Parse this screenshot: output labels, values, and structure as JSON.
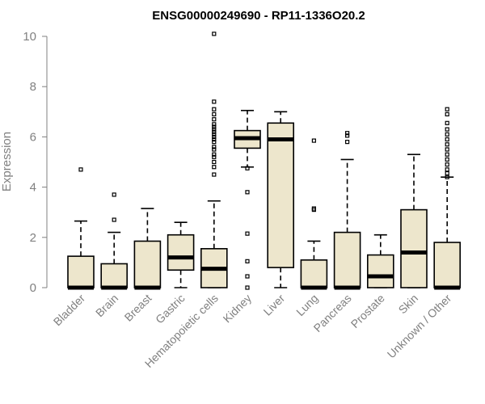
{
  "chart_data": {
    "type": "boxplot",
    "title": "ENSG00000249690 - RP11-1336O20.2",
    "xlabel": "",
    "ylabel": "Expression",
    "ylim": [
      0,
      10
    ],
    "yticks": [
      0,
      2,
      4,
      6,
      8,
      10
    ],
    "categories": [
      "Bladder",
      "Brain",
      "Breast",
      "Gastric",
      "Hematopoietic cells",
      "Kidney",
      "Liver",
      "Lung",
      "Pancreas",
      "Prostate",
      "Skin",
      "Unknown / Other"
    ],
    "boxes": [
      {
        "min": 0,
        "q1": 0,
        "median": 0,
        "q3": 1.25,
        "max": 2.65,
        "outliers": [
          4.7
        ]
      },
      {
        "min": 0,
        "q1": 0,
        "median": 0,
        "q3": 0.95,
        "max": 2.2,
        "outliers": [
          2.7,
          3.7
        ]
      },
      {
        "min": 0,
        "q1": 0,
        "median": 0,
        "q3": 1.85,
        "max": 3.15,
        "outliers": []
      },
      {
        "min": 0,
        "q1": 0.7,
        "median": 1.2,
        "q3": 2.1,
        "max": 2.6,
        "outliers": []
      },
      {
        "min": 0,
        "q1": 0,
        "median": 0.75,
        "q3": 1.55,
        "max": 3.45,
        "outliers": [
          4.5,
          4.8,
          5.0,
          5.2,
          5.3,
          5.5,
          5.6,
          5.8,
          5.9,
          6.0,
          6.1,
          6.2,
          6.3,
          6.4,
          6.5,
          6.7,
          6.9,
          7.1,
          7.4,
          10.1
        ]
      },
      {
        "min": 4.8,
        "q1": 5.55,
        "median": 5.95,
        "q3": 6.25,
        "max": 7.05,
        "outliers": [
          0,
          0.45,
          1.05,
          2.15,
          3.8,
          4.75
        ]
      },
      {
        "min": 0,
        "q1": 0.8,
        "median": 5.9,
        "q3": 6.55,
        "max": 7.0,
        "outliers": []
      },
      {
        "min": 0,
        "q1": 0,
        "median": 0,
        "q3": 1.1,
        "max": 1.85,
        "outliers": [
          3.1,
          3.15,
          5.85
        ]
      },
      {
        "min": 0,
        "q1": 0,
        "median": 0,
        "q3": 2.2,
        "max": 5.1,
        "outliers": [
          5.8,
          6.05,
          6.15
        ]
      },
      {
        "min": 0,
        "q1": 0,
        "median": 0.45,
        "q3": 1.3,
        "max": 2.1,
        "outliers": []
      },
      {
        "min": 0,
        "q1": 0,
        "median": 1.4,
        "q3": 3.1,
        "max": 5.3,
        "outliers": []
      },
      {
        "min": 0,
        "q1": 0,
        "median": 0,
        "q3": 1.8,
        "max": 4.4,
        "outliers": [
          4.4,
          4.55,
          4.7,
          4.9,
          5.1,
          5.3,
          5.5,
          5.7,
          5.9,
          6.1,
          6.3,
          6.55,
          6.9,
          7.1
        ]
      }
    ],
    "colors": {
      "box_fill": "#ede6cc",
      "box_stroke": "#000000",
      "axis": "#808080"
    },
    "grid": false,
    "legend": "none"
  }
}
